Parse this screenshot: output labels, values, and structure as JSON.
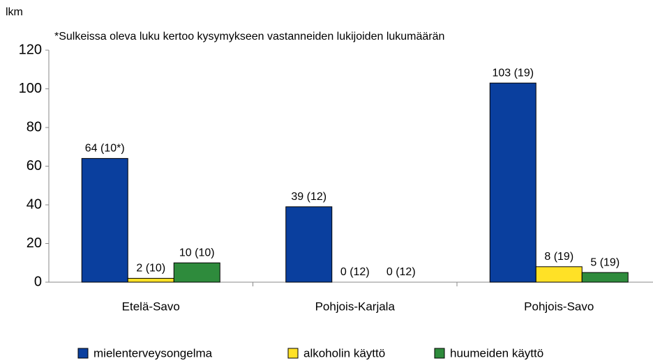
{
  "chart_data": {
    "type": "bar",
    "y_axis_label": "lkm",
    "annotation": "*Sulkeissa oleva luku kertoo kysymykseen vastanneiden lukijoiden lukumäärän",
    "categories": [
      "Etelä-Savo",
      "Pohjois-Karjala",
      "Pohjois-Savo"
    ],
    "series": [
      {
        "name": "mielenterveysongelma",
        "color": "#0a3f9e",
        "values": [
          64,
          39,
          103
        ],
        "value_labels": [
          "64 (10*)",
          "39 (12)",
          "103 (19)"
        ]
      },
      {
        "name": "alkoholin käyttö",
        "color": "#ffe126",
        "values": [
          2,
          0,
          8
        ],
        "value_labels": [
          "2 (10)",
          "0 (12)",
          "8 (19)"
        ]
      },
      {
        "name": "huumeiden käyttö",
        "color": "#2e8b3c",
        "values": [
          10,
          0,
          5
        ],
        "value_labels": [
          "10 (10)",
          "0 (12)",
          "5 (19)"
        ]
      }
    ],
    "ylim": [
      0,
      120
    ],
    "yticks": [
      0,
      20,
      40,
      60,
      80,
      100,
      120
    ],
    "grid": false,
    "legend": "bottom"
  }
}
